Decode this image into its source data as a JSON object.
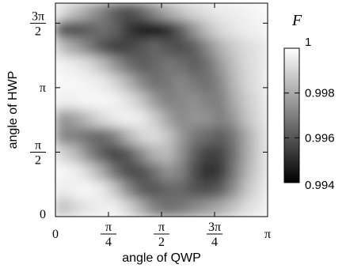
{
  "chart_data": {
    "type": "heatmap",
    "title": "",
    "xlabel": "angle of QWP",
    "ylabel": "angle of HWP",
    "xlim": [
      0,
      3.14159
    ],
    "ylim": [
      0,
      5.2
    ],
    "x_ticks": [
      {
        "value": 0,
        "label": "0"
      },
      {
        "value": 0.7854,
        "num": "π",
        "den": "4"
      },
      {
        "value": 1.5708,
        "num": "π",
        "den": "2"
      },
      {
        "value": 2.3562,
        "num": "3π",
        "den": "4"
      },
      {
        "value": 3.14159,
        "label": "π"
      }
    ],
    "y_ticks": [
      {
        "value": 0,
        "label": "0"
      },
      {
        "value": 1.5708,
        "num": "π",
        "den": "2"
      },
      {
        "value": 3.14159,
        "label": "π"
      },
      {
        "value": 4.7124,
        "num": "3π",
        "den": "2"
      }
    ],
    "colorbar": {
      "label": "F",
      "min": 0.994,
      "max": 1,
      "ticks": [
        {
          "value": 1,
          "label": "1"
        },
        {
          "value": 0.998,
          "label": "0.998"
        },
        {
          "value": 0.996,
          "label": "0.996"
        },
        {
          "value": 0.994,
          "label": "0.994"
        }
      ],
      "colormap": "grayscale (black = low, white = high)"
    },
    "z_grid": {
      "description_units": "fidelity F on a 16 x 12 grid, rows from HWP = 5.2 (top) to 0 (bottom), columns from QWP = 0 to π",
      "rows": [
        [
          0.9992,
          0.9985,
          0.9978,
          0.997,
          0.9962,
          0.9958,
          0.9963,
          0.9972,
          0.998,
          0.9986,
          0.999,
          0.9993,
          0.9995,
          0.9996,
          0.9997,
          0.9998
        ],
        [
          0.996,
          0.9958,
          0.9962,
          0.9966,
          0.9963,
          0.9954,
          0.9946,
          0.9944,
          0.995,
          0.9962,
          0.9975,
          0.9985,
          0.9991,
          0.9994,
          0.9996,
          0.9997
        ],
        [
          0.9985,
          0.9978,
          0.997,
          0.996,
          0.9955,
          0.9956,
          0.996,
          0.9964,
          0.996,
          0.9958,
          0.9962,
          0.9972,
          0.9982,
          0.9988,
          0.9992,
          0.9994
        ],
        [
          0.9997,
          0.9995,
          0.9992,
          0.9985,
          0.9975,
          0.9966,
          0.9962,
          0.9964,
          0.9968,
          0.9966,
          0.9962,
          0.9966,
          0.9976,
          0.9985,
          0.9991,
          0.9994
        ],
        [
          0.9998,
          0.9998,
          0.9997,
          0.9995,
          0.999,
          0.9982,
          0.9972,
          0.9966,
          0.9968,
          0.9972,
          0.9968,
          0.9966,
          0.9972,
          0.9983,
          0.999,
          0.9994
        ],
        [
          0.9996,
          0.9997,
          0.9998,
          0.9998,
          0.9997,
          0.9993,
          0.9986,
          0.9976,
          0.997,
          0.9972,
          0.9974,
          0.997,
          0.997,
          0.998,
          0.9988,
          0.9993
        ],
        [
          0.9975,
          0.9978,
          0.9985,
          0.9991,
          0.9995,
          0.9997,
          0.9995,
          0.9988,
          0.9978,
          0.9972,
          0.9975,
          0.9974,
          0.997,
          0.9976,
          0.9986,
          0.9992
        ],
        [
          0.9972,
          0.997,
          0.9966,
          0.9964,
          0.997,
          0.9982,
          0.999,
          0.9992,
          0.9986,
          0.9976,
          0.9968,
          0.9965,
          0.9962,
          0.9968,
          0.998,
          0.999
        ],
        [
          0.999,
          0.9984,
          0.9972,
          0.9962,
          0.9956,
          0.996,
          0.9972,
          0.9982,
          0.9984,
          0.9974,
          0.9962,
          0.9955,
          0.9956,
          0.9966,
          0.998,
          0.999
        ],
        [
          0.9998,
          0.9996,
          0.999,
          0.998,
          0.9966,
          0.9958,
          0.9958,
          0.9966,
          0.9974,
          0.997,
          0.9958,
          0.995,
          0.9954,
          0.9968,
          0.9982,
          0.9991
        ],
        [
          0.9995,
          0.9997,
          0.9998,
          0.9995,
          0.9986,
          0.9972,
          0.9962,
          0.996,
          0.9964,
          0.9964,
          0.996,
          0.9958,
          0.9962,
          0.9974,
          0.9986,
          0.9993
        ],
        [
          0.9985,
          0.999,
          0.9994,
          0.9996,
          0.9996,
          0.999,
          0.998,
          0.997,
          0.9966,
          0.9968,
          0.9972,
          0.9976,
          0.998,
          0.9986,
          0.9992,
          0.9995
        ]
      ]
    }
  }
}
